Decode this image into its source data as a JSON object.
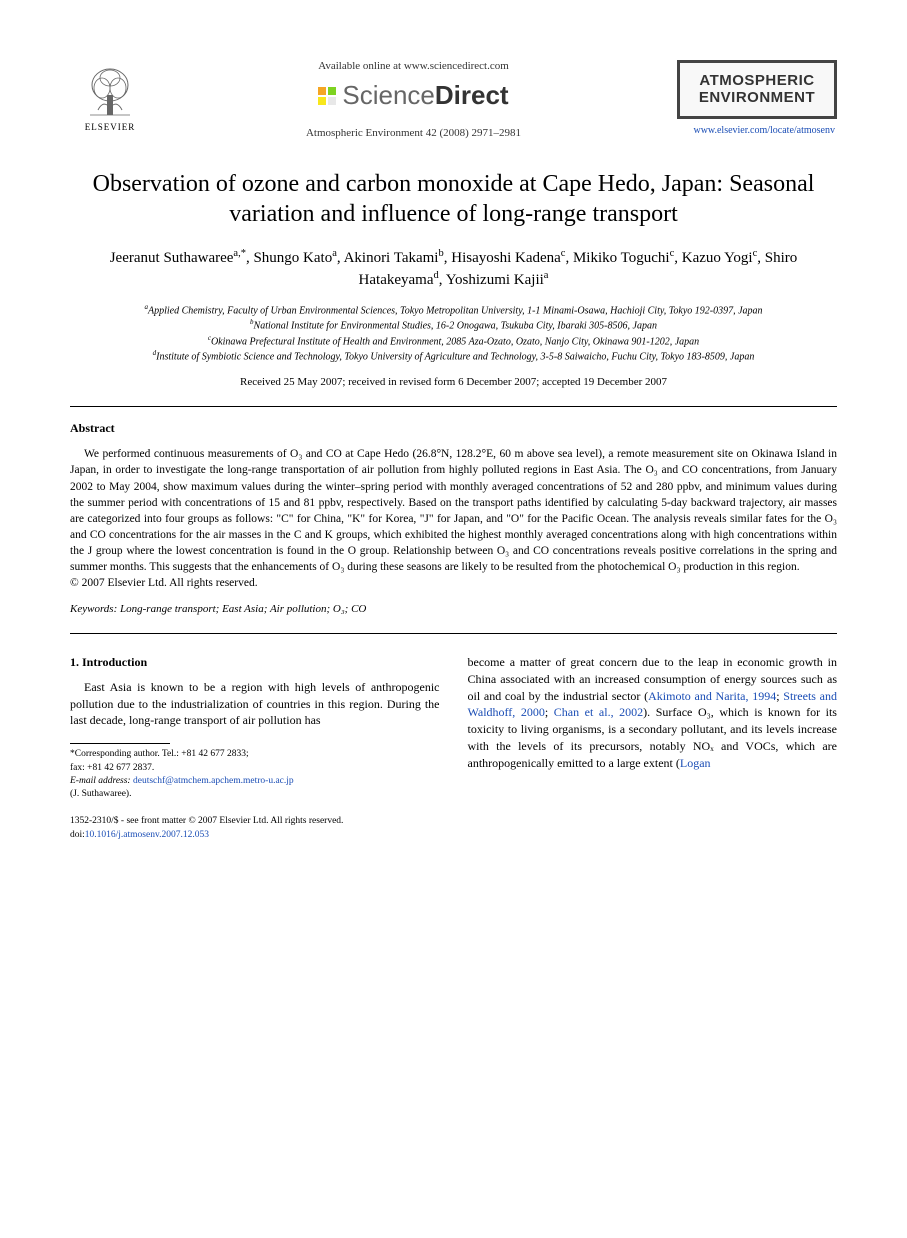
{
  "header": {
    "available_text": "Available online at www.sciencedirect.com",
    "sciencedirect": {
      "science": "Science",
      "direct": "Direct"
    },
    "sd_icon_colors": [
      "#f5a623",
      "#7ed321",
      "#f8e71c",
      "#e8e8e8"
    ],
    "citation": "Atmospheric Environment 42 (2008) 2971–2981",
    "elsevier_label": "ELSEVIER",
    "journal_box_line1": "ATMOSPHERIC",
    "journal_box_line2": "ENVIRONMENT",
    "journal_url": "www.elsevier.com/locate/atmosenv"
  },
  "title": "Observation of ozone and carbon monoxide at Cape Hedo, Japan: Seasonal variation and influence of long-range transport",
  "authors_html": "Jeeranut Suthawaree<sup>a,*</sup>, Shungo Kato<sup>a</sup>, Akinori Takami<sup>b</sup>, Hisayoshi Kadena<sup>c</sup>, Mikiko Toguchi<sup>c</sup>, Kazuo Yogi<sup>c</sup>, Shiro Hatakeyama<sup>d</sup>, Yoshizumi Kajii<sup>a</sup>",
  "affiliations": {
    "a": "Applied Chemistry, Faculty of Urban Environmental Sciences, Tokyo Metropolitan University, 1-1 Minami-Osawa, Hachioji City, Tokyo 192-0397, Japan",
    "b": "National Institute for Environmental Studies, 16-2 Onogawa, Tsukuba City, Ibaraki 305-8506, Japan",
    "c": "Okinawa Prefectural Institute of Health and Environment, 2085 Aza-Ozato, Ozato, Nanjo City, Okinawa 901-1202, Japan",
    "d": "Institute of Symbiotic Science and Technology, Tokyo University of Agriculture and Technology, 3-5-8 Saiwaicho, Fuchu City, Tokyo 183-8509, Japan"
  },
  "dates": "Received 25 May 2007; received in revised form 6 December 2007; accepted 19 December 2007",
  "abstract": {
    "heading": "Abstract",
    "text": "We performed continuous measurements of O₃ and CO at Cape Hedo (26.8°N, 128.2°E, 60 m above sea level), a remote measurement site on Okinawa Island in Japan, in order to investigate the long-range transportation of air pollution from highly polluted regions in East Asia. The O₃ and CO concentrations, from January 2002 to May 2004, show maximum values during the winter–spring period with monthly averaged concentrations of 52 and 280 ppbv, and minimum values during the summer period with concentrations of 15 and 81 ppbv, respectively. Based on the transport paths identified by calculating 5-day backward trajectory, air masses are categorized into four groups as follows: \"C\" for China, \"K\" for Korea, \"J\" for Japan, and \"O\" for the Pacific Ocean. The analysis reveals similar fates for the O₃ and CO concentrations for the air masses in the C and K groups, which exhibited the highest monthly averaged concentrations along with high concentrations within the J group where the lowest concentration is found in the O group. Relationship between O₃ and CO concentrations reveals positive correlations in the spring and summer months. This suggests that the enhancements of O₃ during these seasons are likely to be resulted from the photochemical O₃ production in this region.",
    "copyright": "© 2007 Elsevier Ltd. All rights reserved."
  },
  "keywords": {
    "label": "Keywords:",
    "text": "Long-range transport; East Asia; Air pollution; O₃; CO"
  },
  "intro": {
    "heading": "1. Introduction",
    "col1": "East Asia is known to be a region with high levels of anthropogenic pollution due to the industrialization of countries in this region. During the last decade, long-range transport of air pollution has",
    "col2_part1": "become a matter of great concern due to the leap in economic growth in China associated with an increased consumption of energy sources such as oil and coal by the industrial sector (",
    "ref1": "Akimoto and Narita, 1994",
    "sep1": "; ",
    "ref2": "Streets and Waldhoff, 2000",
    "sep2": "; ",
    "ref3": "Chan et al., 2002",
    "col2_part2": "). Surface O₃, which is known for its toxicity to living organisms, is a secondary pollutant, and its levels increase with the levels of its precursors, notably NOₓ and VOCs, which are anthropogenically emitted to a large extent (",
    "ref4": "Logan"
  },
  "footnote": {
    "corresponding": "*Corresponding author. Tel.: +81 42 677 2833;",
    "fax": "fax: +81 42 677 2837.",
    "email_label": "E-mail address:",
    "email": "deutschf@atmchem.apchem.metro-u.ac.jp",
    "email_name": "(J. Suthawaree)."
  },
  "footer": {
    "line1": "1352-2310/$ - see front matter © 2007 Elsevier Ltd. All rights reserved.",
    "doi_label": "doi:",
    "doi": "10.1016/j.atmosenv.2007.12.053"
  }
}
